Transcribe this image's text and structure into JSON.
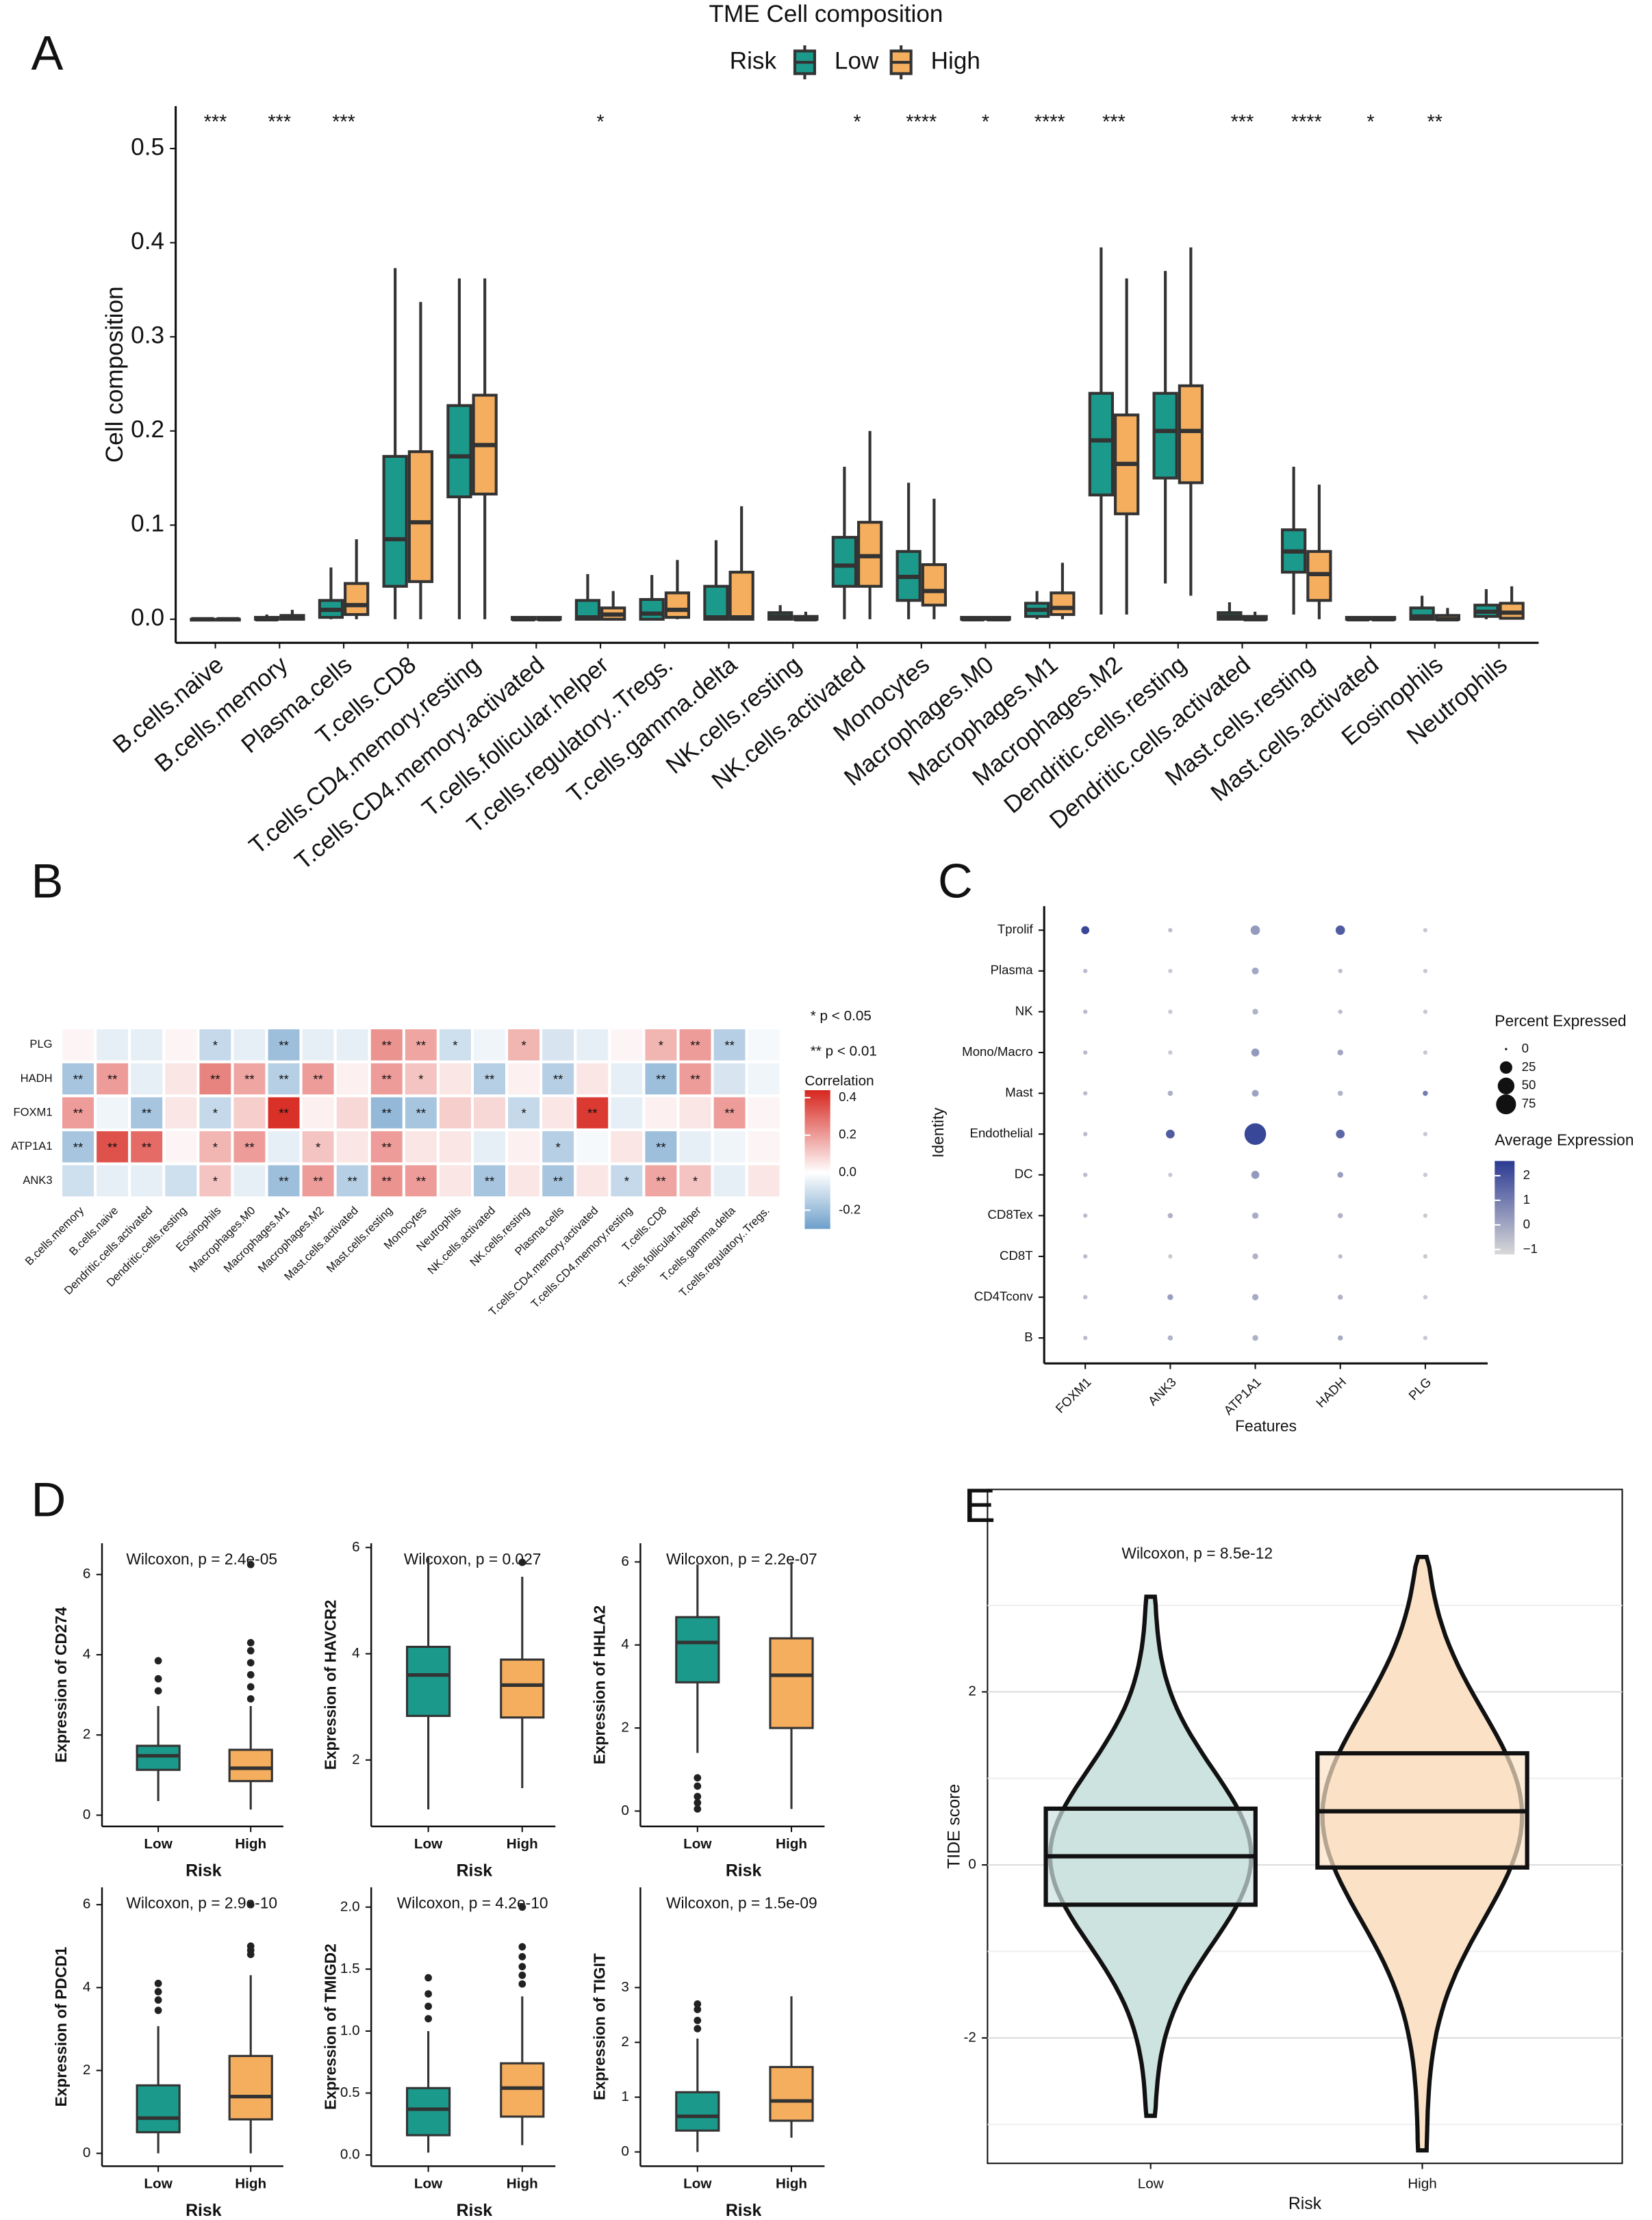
{
  "chart_data": [
    {
      "type": "grouped_boxplot",
      "panel_label": "A",
      "title": "TME Cell composition",
      "legend_title": "Risk",
      "ylabel": "Cell composition",
      "categories": [
        "B.cells.naive",
        "B.cells.memory",
        "Plasma.cells",
        "T.cells.CD8",
        "T.cells.CD4.memory.resting",
        "T.cells.CD4.memory.activated",
        "T.cells.follicular.helper",
        "T.cells.regulatory..Tregs.",
        "T.cells.gamma.delta",
        "NK.cells.resting",
        "NK.cells.activated",
        "Monocytes",
        "Macrophages.M0",
        "Macrophages.M1",
        "Macrophages.M2",
        "Dendritic.cells.resting",
        "Dendritic.cells.activated",
        "Mast.cells.resting",
        "Mast.cells.activated",
        "Eosinophils",
        "Neutrophils"
      ],
      "annotations": [
        "***",
        "***",
        "***",
        null,
        null,
        null,
        "*",
        null,
        null,
        null,
        "*",
        "****",
        "*",
        "****",
        "***",
        null,
        "***",
        "****",
        "*",
        "**",
        null
      ],
      "ylim": [
        -0.025,
        0.545
      ],
      "yticks": [
        {
          "value": 0,
          "label": "0.0"
        },
        0.1,
        0.2,
        0.3,
        0.4,
        0.5
      ],
      "series": [
        {
          "name": "Low",
          "color": "#1b9a8c",
          "min": [
            0,
            0,
            0,
            0,
            0,
            0,
            0,
            0,
            0,
            0,
            0,
            0,
            0,
            0,
            0.005,
            0.038,
            0,
            0.005,
            0,
            0,
            0
          ],
          "q1": [
            0,
            0,
            0.002,
            0.035,
            0.13,
            0,
            0,
            0,
            0,
            0,
            0.035,
            0.02,
            0,
            0.003,
            0.132,
            0.15,
            0,
            0.05,
            0,
            0,
            0.003
          ],
          "median": [
            0,
            0,
            0.01,
            0.085,
            0.173,
            0,
            0.002,
            0.006,
            0.002,
            0.003,
            0.057,
            0.045,
            0,
            0.01,
            0.19,
            0.2,
            0.003,
            0.072,
            0,
            0.003,
            0.008
          ],
          "q3": [
            0,
            0.002,
            0.02,
            0.173,
            0.227,
            0.002,
            0.02,
            0.021,
            0.035,
            0.007,
            0.087,
            0.072,
            0.002,
            0.017,
            0.24,
            0.24,
            0.007,
            0.095,
            0.002,
            0.012,
            0.015
          ],
          "max": [
            0.002,
            0.005,
            0.055,
            0.373,
            0.362,
            0.003,
            0.048,
            0.047,
            0.084,
            0.015,
            0.162,
            0.145,
            0.003,
            0.03,
            0.395,
            0.37,
            0.018,
            0.162,
            0.003,
            0.025,
            0.032
          ]
        },
        {
          "name": "High",
          "color": "#f5ae5e",
          "min": [
            0,
            0,
            0,
            0,
            0,
            0,
            0,
            0,
            0,
            0,
            0,
            0,
            0,
            0,
            0.005,
            0.025,
            0,
            0,
            0,
            0,
            0
          ],
          "q1": [
            0,
            0,
            0.005,
            0.04,
            0.133,
            0,
            0,
            0.002,
            0,
            0,
            0.035,
            0.015,
            0,
            0.005,
            0.112,
            0.145,
            0,
            0.02,
            0,
            0,
            0.001
          ],
          "median": [
            0,
            0.001,
            0.015,
            0.103,
            0.185,
            0,
            0.005,
            0.01,
            0.002,
            0,
            0.067,
            0.03,
            0,
            0.012,
            0.165,
            0.2,
            0,
            0.048,
            0,
            0,
            0.007
          ],
          "q3": [
            0,
            0.004,
            0.038,
            0.178,
            0.238,
            0.002,
            0.012,
            0.028,
            0.05,
            0.003,
            0.103,
            0.058,
            0.002,
            0.028,
            0.217,
            0.248,
            0.003,
            0.072,
            0.002,
            0.004,
            0.017
          ],
          "max": [
            0.002,
            0.01,
            0.085,
            0.337,
            0.362,
            0.003,
            0.03,
            0.063,
            0.12,
            0.008,
            0.2,
            0.128,
            0.003,
            0.06,
            0.362,
            0.395,
            0.008,
            0.143,
            0.003,
            0.012,
            0.035
          ]
        }
      ]
    },
    {
      "type": "heatmap",
      "panel_label": "B",
      "rows": [
        "PLG",
        "HADH",
        "FOXM1",
        "ATP1A1",
        "ANK3"
      ],
      "columns": [
        "B.cells.memory",
        "B.cells.naive",
        "Dendritic.cells.activated",
        "Dendritic.cells.resting",
        "Eosinophils",
        "Macrophages.M0",
        "Macrophages.M1",
        "Macrophages.M2",
        "Mast.cells.activated",
        "Mast.cells.resting",
        "Monocytes",
        "Neutrophils",
        "NK.cells.activated",
        "NK.cells.resting",
        "Plasma.cells",
        "T.cells.CD4.memory.activated",
        "T.cells.CD4.memory.resting",
        "T.cells.CD8",
        "T.cells.follicular.helper",
        "T.cells.gamma.delta",
        "T.cells.regulatory..Tregs."
      ],
      "values": [
        [
          0.02,
          -0.05,
          -0.05,
          0.02,
          -0.12,
          -0.05,
          -0.2,
          -0.05,
          -0.05,
          0.22,
          0.18,
          -0.1,
          -0.03,
          0.15,
          -0.08,
          -0.05,
          0.02,
          0.15,
          0.2,
          -0.15,
          -0.02
        ],
        [
          -0.18,
          0.2,
          -0.05,
          0.05,
          0.25,
          0.18,
          -0.15,
          0.2,
          0.03,
          0.2,
          0.12,
          0.05,
          -0.15,
          0.03,
          -0.15,
          0.05,
          -0.05,
          -0.2,
          0.2,
          -0.08,
          -0.03
        ],
        [
          0.2,
          -0.03,
          -0.18,
          0.05,
          -0.12,
          0.1,
          0.42,
          0.03,
          0.08,
          -0.22,
          -0.18,
          0.1,
          0.08,
          -0.12,
          0.05,
          0.4,
          -0.05,
          0.03,
          0.05,
          0.2,
          0.02
        ],
        [
          -0.18,
          0.35,
          0.3,
          0.02,
          0.15,
          0.2,
          -0.05,
          0.12,
          0.05,
          0.2,
          0.05,
          0.05,
          -0.05,
          0.03,
          -0.15,
          -0.02,
          0.05,
          -0.2,
          -0.05,
          -0.03,
          0.02
        ],
        [
          -0.1,
          -0.05,
          -0.05,
          -0.1,
          0.12,
          -0.05,
          -0.2,
          0.2,
          -0.15,
          0.22,
          0.2,
          0.05,
          -0.18,
          0.05,
          -0.18,
          0.05,
          -0.12,
          0.18,
          0.12,
          -0.05,
          0.05
        ]
      ],
      "labels": [
        [
          null,
          null,
          null,
          null,
          "*",
          null,
          "**",
          null,
          null,
          "**",
          "**",
          "*",
          null,
          "*",
          null,
          null,
          null,
          "*",
          "**",
          "**",
          null
        ],
        [
          "**",
          "**",
          null,
          null,
          "**",
          "**",
          "**",
          "**",
          null,
          "**",
          "*",
          null,
          "**",
          null,
          "**",
          null,
          null,
          "**",
          "**",
          null,
          null
        ],
        [
          "**",
          null,
          "**",
          null,
          "*",
          null,
          "**",
          null,
          null,
          "**",
          "**",
          null,
          null,
          "*",
          null,
          "**",
          null,
          null,
          null,
          "**",
          null
        ],
        [
          "**",
          "**",
          "**",
          null,
          "*",
          "**",
          null,
          "*",
          null,
          "**",
          null,
          null,
          null,
          null,
          "*",
          null,
          null,
          "**",
          null,
          null,
          null
        ],
        [
          null,
          null,
          null,
          null,
          "*",
          null,
          "**",
          "**",
          "**",
          "**",
          "**",
          null,
          "**",
          null,
          "**",
          null,
          "*",
          "**",
          "*",
          null,
          null
        ]
      ],
      "notes": [
        "* p < 0.05",
        "** p < 0.01"
      ],
      "legend_title": "Correlation",
      "clim": [
        -0.3,
        0.44
      ],
      "cticks": [
        0.4,
        0.2,
        {
          "value": 0,
          "label": "0.0"
        },
        -0.2
      ],
      "low_color": "#6d9fca",
      "mid_color": "#ffffff",
      "high_color": "#d7261e"
    },
    {
      "type": "dotplot",
      "panel_label": "C",
      "xlabel": "Features",
      "ylabel": "Identity",
      "features": [
        "FOXM1",
        "ANK3",
        "ATP1A1",
        "HADH",
        "PLG"
      ],
      "identities": [
        "Tprolif",
        "Plasma",
        "NK",
        "Mono/Macro",
        "Mast",
        "Endothelial",
        "DC",
        "CD8Tex",
        "CD8T",
        "CD4Tconv",
        "B"
      ],
      "percent": [
        [
          8,
          1,
          12,
          12,
          1
        ],
        [
          1,
          1,
          5,
          1,
          1
        ],
        [
          1,
          1,
          3,
          1,
          1
        ],
        [
          1,
          1,
          8,
          3,
          1
        ],
        [
          1,
          2,
          5,
          2,
          2
        ],
        [
          1,
          10,
          90,
          10,
          1
        ],
        [
          1,
          1,
          8,
          3,
          1
        ],
        [
          1,
          2,
          4,
          2,
          1
        ],
        [
          1,
          1,
          3,
          1,
          1
        ],
        [
          1,
          3,
          4,
          2,
          1
        ],
        [
          1,
          2,
          3,
          2,
          1
        ]
      ],
      "average": [
        [
          2.3,
          -0.5,
          0.3,
          1.8,
          -0.8
        ],
        [
          -0.5,
          -0.8,
          0,
          -0.5,
          -0.8
        ],
        [
          -0.5,
          -0.8,
          -0.3,
          -0.5,
          -0.8
        ],
        [
          -0.5,
          -0.8,
          0.3,
          0,
          -0.8
        ],
        [
          -0.5,
          -0.2,
          0.1,
          -0.3,
          1
        ],
        [
          -0.5,
          1.8,
          2.3,
          1.5,
          -0.8
        ],
        [
          -0.5,
          -0.8,
          0.3,
          0.2,
          -0.8
        ],
        [
          -0.5,
          -0.3,
          -0.1,
          -0.3,
          -0.8
        ],
        [
          -0.5,
          -0.8,
          -0.3,
          -0.5,
          -0.8
        ],
        [
          -0.5,
          0.2,
          -0.1,
          -0.3,
          -0.8
        ],
        [
          -0.5,
          -0.3,
          -0.3,
          -0.1,
          -0.8
        ]
      ],
      "size_legend_title": "Percent Expressed",
      "size_ticks": [
        0,
        25,
        50,
        75
      ],
      "color_legend_title": "Average Expression",
      "clim": [
        -1.2,
        2.6
      ],
      "cticks": [
        2,
        1,
        0,
        {
          "value": -1,
          "label": "−1"
        }
      ],
      "low_color": "#d9d9d9",
      "high_color": "#2b3a92"
    },
    {
      "type": "boxplot",
      "panel_label": "D",
      "annotation": "Wilcoxon, p = 2.4e-05",
      "ylabel": "Expression of CD274",
      "xlabel": "Risk",
      "categories": [
        "Low",
        "High"
      ],
      "colors": [
        "#1b9a8c",
        "#f5ae5e"
      ],
      "min": [
        0.35,
        0.14
      ],
      "q1": [
        1.13,
        0.85
      ],
      "median": [
        1.48,
        1.17
      ],
      "q3": [
        1.73,
        1.63
      ],
      "max": [
        2.72,
        2.72
      ],
      "outliers": [
        [
          3.1,
          3.4,
          3.85
        ],
        [
          2.9,
          3.2,
          3.5,
          3.8,
          4.1,
          4.3,
          6.25
        ]
      ],
      "ylim": [
        -0.28,
        6.78
      ],
      "yticks": [
        0,
        2,
        4,
        6
      ]
    },
    {
      "type": "boxplot",
      "annotation": "Wilcoxon, p = 0.027",
      "ylabel": "Expression of HAVCR2",
      "xlabel": "Risk",
      "categories": [
        "Low",
        "High"
      ],
      "colors": [
        "#1b9a8c",
        "#f5ae5e"
      ],
      "min": [
        1.07,
        1.47
      ],
      "q1": [
        2.83,
        2.8
      ],
      "median": [
        3.6,
        3.41
      ],
      "q3": [
        4.13,
        3.89
      ],
      "max": [
        5.81,
        5.45
      ],
      "outliers": [
        [],
        [
          5.72
        ]
      ],
      "ylim": [
        0.75,
        6.08
      ],
      "yticks": [
        2,
        4,
        6
      ]
    },
    {
      "type": "boxplot",
      "annotation": "Wilcoxon, p = 2.2e-07",
      "ylabel": "Expression of HHLA2",
      "xlabel": "Risk",
      "categories": [
        "Low",
        "High"
      ],
      "colors": [
        "#1b9a8c",
        "#f5ae5e"
      ],
      "min": [
        1.4,
        0.05
      ],
      "q1": [
        3.1,
        2.0
      ],
      "median": [
        4.06,
        3.27
      ],
      "q3": [
        4.67,
        4.16
      ],
      "max": [
        5.94,
        6.0
      ],
      "outliers": [
        [
          0.05,
          0.2,
          0.35,
          0.6,
          0.8
        ],
        []
      ],
      "ylim": [
        -0.37,
        6.45
      ],
      "yticks": [
        0,
        2,
        4,
        6
      ]
    },
    {
      "type": "boxplot",
      "annotation": "Wilcoxon, p = 2.9e-10",
      "ylabel": "Expression of PDCD1",
      "xlabel": "Risk",
      "categories": [
        "Low",
        "High"
      ],
      "colors": [
        "#1b9a8c",
        "#f5ae5e"
      ],
      "min": [
        0,
        0
      ],
      "q1": [
        0.51,
        0.82
      ],
      "median": [
        0.85,
        1.37
      ],
      "q3": [
        1.64,
        2.35
      ],
      "max": [
        3.07,
        4.3
      ],
      "outliers": [
        [
          3.45,
          3.7,
          3.9,
          4.1
        ],
        [
          4.8,
          4.9,
          5.0,
          6.0
        ]
      ],
      "ylim": [
        -0.31,
        6.42
      ],
      "yticks": [
        0,
        2,
        4,
        6
      ]
    },
    {
      "type": "boxplot",
      "annotation": "Wilcoxon, p = 4.2e-10",
      "ylabel": "Expression of TMIGD2",
      "xlabel": "Risk",
      "categories": [
        "Low",
        "High"
      ],
      "colors": [
        "#1b9a8c",
        "#f5ae5e"
      ],
      "min": [
        0.02,
        0.08
      ],
      "q1": [
        0.16,
        0.31
      ],
      "median": [
        0.37,
        0.54
      ],
      "q3": [
        0.54,
        0.74
      ],
      "max": [
        1.0,
        1.28
      ],
      "outliers": [
        [
          1.1,
          1.2,
          1.3,
          1.43
        ],
        [
          1.38,
          1.45,
          1.52,
          1.6,
          1.68,
          2.0
        ]
      ],
      "ylim": [
        -0.09,
        2.16
      ],
      "yticks": [
        {
          "value": 0,
          "label": "0.0"
        },
        0.5,
        {
          "value": 1,
          "label": "1.0"
        },
        1.5,
        {
          "value": 2,
          "label": "2.0"
        }
      ]
    },
    {
      "type": "boxplot",
      "annotation": "Wilcoxon, p = 1.5e-09",
      "ylabel": "Expression of TIGIT",
      "xlabel": "Risk",
      "categories": [
        "Low",
        "High"
      ],
      "colors": [
        "#1b9a8c",
        "#f5ae5e"
      ],
      "min": [
        0,
        0.26
      ],
      "q1": [
        0.39,
        0.57
      ],
      "median": [
        0.65,
        0.93
      ],
      "q3": [
        1.09,
        1.55
      ],
      "max": [
        2.07,
        2.84
      ],
      "outliers": [
        [
          2.25,
          2.4,
          2.6,
          2.7
        ],
        []
      ],
      "ylim": [
        -0.26,
        4.83
      ],
      "yticks": [
        0,
        1,
        2,
        3
      ]
    },
    {
      "type": "violin",
      "panel_label": "E",
      "annotation": "Wilcoxon, p = 8.5e-12",
      "ylabel": "TIDE score",
      "xlabel": "Risk",
      "categories": [
        "Low",
        "High"
      ],
      "colors": [
        "#cde3df",
        "#fbe2c6"
      ],
      "min": [
        -2.9,
        -3.3
      ],
      "q1": [
        -0.46,
        -0.03
      ],
      "median": [
        0.1,
        0.62
      ],
      "q3": [
        0.65,
        1.29
      ],
      "max": [
        3.1,
        3.56
      ],
      "ylim": [
        -3.45,
        4.34
      ],
      "yticks": [
        -2,
        0,
        2
      ],
      "minor_gridlines": [
        -3,
        -1,
        1,
        3
      ],
      "grid": true
    }
  ]
}
